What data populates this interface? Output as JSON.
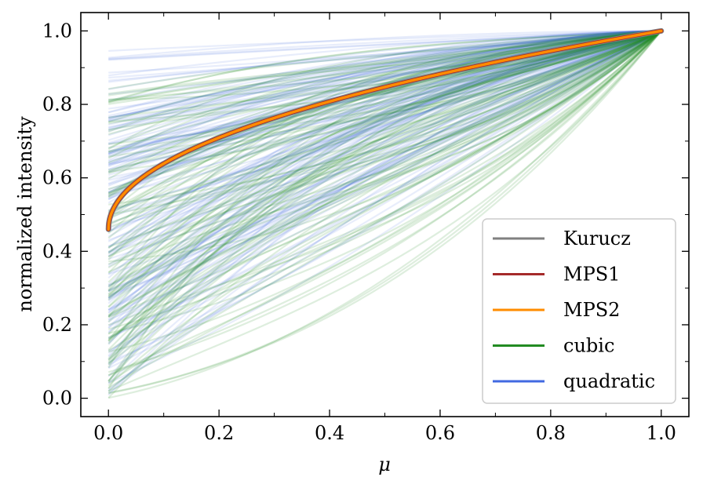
{
  "chart_data": {
    "type": "line",
    "title": "",
    "xlabel": "μ",
    "ylabel": "normalized intensity",
    "xlim": [
      -0.05,
      1.05
    ],
    "ylim": [
      -0.05,
      1.05
    ],
    "x_ticks": [
      0.0,
      0.2,
      0.4,
      0.6,
      0.8,
      1.0
    ],
    "x_tick_labels": [
      "0.0",
      "0.2",
      "0.4",
      "0.6",
      "0.8",
      "1.0"
    ],
    "y_ticks": [
      0.0,
      0.2,
      0.4,
      0.6,
      0.8,
      1.0
    ],
    "y_tick_labels": [
      "0.0",
      "0.2",
      "0.4",
      "0.6",
      "0.8",
      "1.0"
    ],
    "legend_position": "lower-right",
    "grid": false,
    "series": [
      {
        "name": "Kurucz",
        "color": "#808080",
        "model": "power-2",
        "params": {
          "c": 0.54,
          "alpha": 0.48
        }
      },
      {
        "name": "MPS1",
        "color": "#a52a2a",
        "model": "power-2",
        "params": {
          "c": 0.54,
          "alpha": 0.48
        }
      },
      {
        "name": "MPS2",
        "color": "#ff8c00",
        "model": "power-2",
        "params": {
          "c": 0.54,
          "alpha": 0.48
        }
      },
      {
        "name": "cubic",
        "color": "#228b22",
        "count": 120,
        "intercept_range": [
          0.0,
          0.85
        ],
        "opacity": 0.15
      },
      {
        "name": "quadratic",
        "color": "#4169e1",
        "count": 160,
        "intercept_range": [
          0.0,
          0.95
        ],
        "opacity": 0.12
      }
    ],
    "common_point": {
      "x": 1.0,
      "y": 1.0
    }
  }
}
